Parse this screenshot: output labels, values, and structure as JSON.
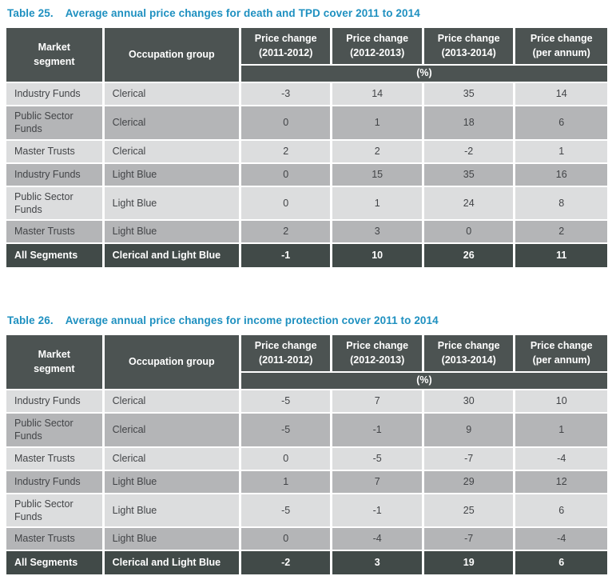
{
  "colors": {
    "caption_blue": "#1e90c0",
    "header_bg": "#4c5352",
    "total_bg": "#414a48",
    "row_light": "#dcddde",
    "row_dark": "#b4b5b7",
    "header_text": "#ffffff",
    "body_text": "#424447"
  },
  "tables": [
    {
      "label": "Table 25.",
      "title": "Average annual price changes for death and TPD cover 2011 to 2014",
      "header": {
        "market_segment": "Market\nsegment",
        "occupation_group": "Occupation group",
        "price_columns": [
          "Price change\n(2011-2012)",
          "Price change\n(2012-2013)",
          "Price change\n(2013-2014)",
          "Price change\n(per annum)"
        ],
        "unit": "(%)"
      },
      "rows": [
        {
          "market_segment": "Industry Funds",
          "occupation_group": "Clerical",
          "values": [
            "-3",
            "14",
            "35",
            "14"
          ]
        },
        {
          "market_segment": "Public Sector Funds",
          "occupation_group": "Clerical",
          "values": [
            "0",
            "1",
            "18",
            "6"
          ]
        },
        {
          "market_segment": "Master Trusts",
          "occupation_group": "Clerical",
          "values": [
            "2",
            "2",
            "-2",
            "1"
          ]
        },
        {
          "market_segment": "Industry Funds",
          "occupation_group": "Light Blue",
          "values": [
            "0",
            "15",
            "35",
            "16"
          ]
        },
        {
          "market_segment": "Public Sector Funds",
          "occupation_group": "Light Blue",
          "values": [
            "0",
            "1",
            "24",
            "8"
          ]
        },
        {
          "market_segment": "Master Trusts",
          "occupation_group": "Light Blue",
          "values": [
            "2",
            "3",
            "0",
            "2"
          ]
        }
      ],
      "total_row": {
        "market_segment": "All Segments",
        "occupation_group": "Clerical and Light Blue",
        "values": [
          "-1",
          "10",
          "26",
          "11"
        ]
      }
    },
    {
      "label": "Table 26.",
      "title": "Average annual price changes for income protection cover 2011 to 2014",
      "header": {
        "market_segment": "Market\nsegment",
        "occupation_group": "Occupation group",
        "price_columns": [
          "Price change\n(2011-2012)",
          "Price change\n(2012-2013)",
          "Price change\n(2013-2014)",
          "Price change\n(per annum)"
        ],
        "unit": "(%)"
      },
      "rows": [
        {
          "market_segment": "Industry Funds",
          "occupation_group": "Clerical",
          "values": [
            "-5",
            "7",
            "30",
            "10"
          ]
        },
        {
          "market_segment": "Public Sector Funds",
          "occupation_group": "Clerical",
          "values": [
            "-5",
            "-1",
            "9",
            "1"
          ]
        },
        {
          "market_segment": "Master Trusts",
          "occupation_group": "Clerical",
          "values": [
            "0",
            "-5",
            "-7",
            "-4"
          ]
        },
        {
          "market_segment": "Industry Funds",
          "occupation_group": "Light Blue",
          "values": [
            "1",
            "7",
            "29",
            "12"
          ]
        },
        {
          "market_segment": "Public Sector Funds",
          "occupation_group": "Light Blue",
          "values": [
            "-5",
            "-1",
            "25",
            "6"
          ]
        },
        {
          "market_segment": "Master Trusts",
          "occupation_group": "Light Blue",
          "values": [
            "0",
            "-4",
            "-7",
            "-4"
          ]
        }
      ],
      "total_row": {
        "market_segment": "All Segments",
        "occupation_group": "Clerical and Light Blue",
        "values": [
          "-2",
          "3",
          "19",
          "6"
        ]
      }
    }
  ]
}
